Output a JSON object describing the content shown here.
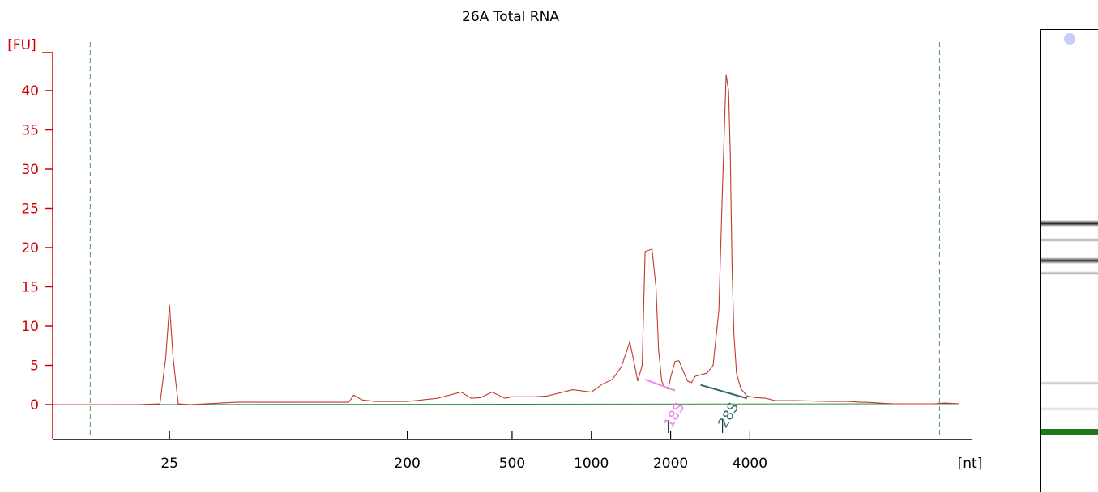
{
  "chart_data": {
    "type": "line",
    "title": "26A Total RNA",
    "ylabel": "[FU]",
    "xlabel": "[nt]",
    "y_ticks": [
      "0",
      "5",
      "10",
      "15",
      "20",
      "25",
      "30",
      "35",
      "40"
    ],
    "ylim": [
      -4.5,
      45
    ],
    "x_ticks": [
      "25",
      "200",
      "500",
      "1000",
      "2000",
      "4000"
    ],
    "x_scale": "log",
    "x_tick_values": [
      25,
      200,
      500,
      1000,
      2000,
      4000
    ],
    "xlim": [
      9,
      28000
    ],
    "grid": false,
    "marker_lines_nt": [
      12.5,
      21000
    ],
    "series": [
      {
        "color": "#c0392b",
        "x": [
          9,
          15.5,
          19,
          23,
          24.2,
          25,
          25.8,
          27,
          30,
          45,
          80,
          110,
          120,
          125,
          135,
          150,
          200,
          260,
          320,
          350,
          380,
          420,
          470,
          500,
          560,
          610,
          680,
          850,
          1000,
          1100,
          1200,
          1300,
          1400,
          1450,
          1500,
          1560,
          1600,
          1700,
          1760,
          1800,
          1850,
          1900,
          1960,
          2000,
          2080,
          2150,
          2250,
          2320,
          2400,
          2480,
          2600,
          2750,
          2900,
          3050,
          3150,
          3250,
          3320,
          3370,
          3420,
          3480,
          3560,
          3700,
          3900,
          4200,
          4600,
          5000,
          6000,
          8000,
          9500,
          10500,
          11000,
          14000,
          20000,
          22000,
          25000
        ],
        "y": [
          0,
          0,
          0,
          0.1,
          6,
          12.7,
          6,
          0.1,
          0,
          0.3,
          0.3,
          0.3,
          0.3,
          1.2,
          0.6,
          0.4,
          0.4,
          0.8,
          1.6,
          0.8,
          0.9,
          1.6,
          0.8,
          1.0,
          1.0,
          1.0,
          1.1,
          1.9,
          1.6,
          2.6,
          3.2,
          4.8,
          8.0,
          5.5,
          3.0,
          5.0,
          19.5,
          19.8,
          15.0,
          7.0,
          3.0,
          2.2,
          2.0,
          3.5,
          5.5,
          5.6,
          4.0,
          3.0,
          2.8,
          3.6,
          3.8,
          4.0,
          5.0,
          12.0,
          28.0,
          42.0,
          40.0,
          32.0,
          18.0,
          9.0,
          4.0,
          2.0,
          1.1,
          0.9,
          0.8,
          0.5,
          0.5,
          0.4,
          0.4,
          0.3,
          0.3,
          0.1,
          0.1,
          0.2,
          0.1
        ]
      },
      {
        "color": "#2e8b3e",
        "x": [
          9,
          25000
        ],
        "y": [
          0,
          0.1
        ]
      }
    ],
    "baselines": [
      {
        "x": [
          1600,
          2080
        ],
        "y": [
          3.2,
          1.8
        ],
        "color": "#ee82ee"
      },
      {
        "x": [
          2600,
          3900
        ],
        "y": [
          2.5,
          0.8
        ],
        "color": "#2f6f6f"
      }
    ],
    "peak_labels": [
      {
        "text": "18S",
        "x": 1960,
        "color": "#ee82ee"
      },
      {
        "text": "28S",
        "x": 3150,
        "color": "#2f6f6f"
      }
    ],
    "gel": {
      "bands": [
        {
          "level": 0.419,
          "color": "#111111",
          "strength": 1.0
        },
        {
          "level": 0.454,
          "color": "#9a9a9a",
          "strength": 0.35
        },
        {
          "level": 0.499,
          "color": "#333333",
          "strength": 0.8
        },
        {
          "level": 0.527,
          "color": "#b0b0b0",
          "strength": 0.35
        },
        {
          "level": 0.765,
          "color": "#c8c8c8",
          "strength": 0.25
        },
        {
          "level": 0.82,
          "color": "#d6d6d6",
          "strength": 0.2
        },
        {
          "level": 0.87,
          "color": "#1a7a1a",
          "strength": 1.0
        }
      ]
    }
  }
}
